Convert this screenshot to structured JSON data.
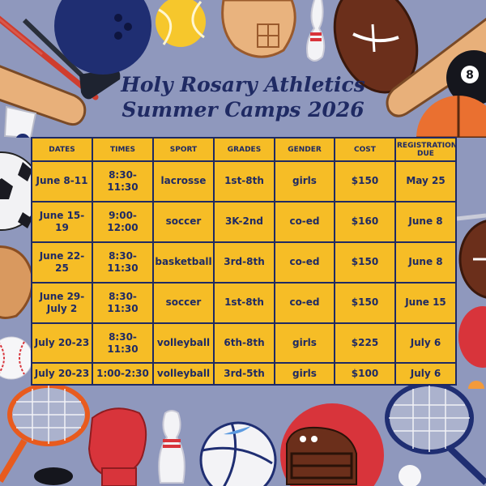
{
  "title_line1": "Holy Rosary Athletics",
  "title_line2": "Summer Camps 2026",
  "columns": [
    "DATES",
    "TIMES",
    "SPORT",
    "GRADES",
    "GENDER",
    "COST",
    "REGISTRATION DUE"
  ],
  "rows": [
    {
      "dates": "June 8-11",
      "times": "8:30-11:30",
      "sport": "lacrosse",
      "grades": "1st-8th",
      "gender": "girls",
      "cost": "$150",
      "due": "May 25"
    },
    {
      "dates": "June 15-19",
      "times": "9:00-12:00",
      "sport": "soccer",
      "grades": "3K-2nd",
      "gender": "co-ed",
      "cost": "$160",
      "due": "June 8"
    },
    {
      "dates": "June 22-25",
      "times": "8:30-11:30",
      "sport": "basketball",
      "grades": "3rd-8th",
      "gender": "co-ed",
      "cost": "$150",
      "due": "June 8"
    },
    {
      "dates": "June 29- July 2",
      "times": "8:30-11:30",
      "sport": "soccer",
      "grades": "1st-8th",
      "gender": "co-ed",
      "cost": "$150",
      "due": "June 15"
    },
    {
      "dates": "July 20-23",
      "times": "8:30-11:30",
      "sport": "volleyball",
      "grades": "6th-8th",
      "gender": "girls",
      "cost": "$225",
      "due": "July 6"
    },
    {
      "dates": "July 20-23",
      "times": "1:00-2:30",
      "sport": "volleyball",
      "grades": "3rd-5th",
      "gender": "girls",
      "cost": "$100",
      "due": "July 6"
    }
  ],
  "colors": {
    "background": "#8f98bd",
    "table_fill": "#f6bd26",
    "navy": "#1f2a63"
  },
  "decorations": [
    "lacrosse-stick-icon",
    "bowling-ball-icon",
    "tennis-ball-icon",
    "baseball-glove-icon",
    "bowling-pin-icon",
    "football-icon",
    "hockey-stick-icon",
    "baseball-bat-icon",
    "eight-ball-icon",
    "shuttlecock-icon",
    "basketball-icon",
    "soccer-ball-icon",
    "baseball-icon",
    "tennis-racket-icon",
    "boxing-glove-icon",
    "volleyball-icon",
    "hockey-puck-icon",
    "helmet-icon",
    "ping-pong-paddle-icon"
  ]
}
